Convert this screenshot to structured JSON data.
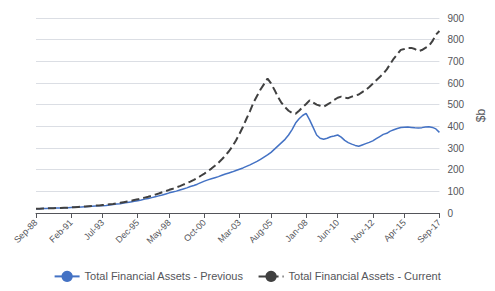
{
  "chart_data": {
    "type": "line",
    "ylabel": "$b",
    "categories": [
      "Sep-88",
      null,
      null,
      null,
      null,
      null,
      null,
      null,
      null,
      null,
      "Feb-91",
      null,
      null,
      null,
      null,
      null,
      null,
      null,
      null,
      "Jul-93",
      null,
      null,
      null,
      null,
      null,
      null,
      null,
      null,
      null,
      "Dec-95",
      null,
      null,
      null,
      null,
      null,
      null,
      null,
      null,
      "May-98",
      null,
      null,
      null,
      null,
      null,
      null,
      null,
      null,
      null,
      "Oct-00",
      null,
      null,
      null,
      null,
      null,
      null,
      null,
      null,
      null,
      "Mar-03",
      null,
      null,
      null,
      null,
      null,
      null,
      null,
      null,
      "Aug-05",
      null,
      null,
      null,
      null,
      null,
      null,
      null,
      null,
      null,
      "Jan-08",
      null,
      null,
      null,
      null,
      null,
      null,
      null,
      null,
      "Jun-10",
      null,
      null,
      null,
      null,
      null,
      null,
      null,
      null,
      null,
      "Nov-12",
      null,
      null,
      null,
      null,
      null,
      null,
      null,
      null,
      "Apr-15",
      null,
      null,
      null,
      null,
      null,
      null,
      null,
      null,
      null,
      "Sep-17"
    ],
    "series": [
      {
        "name": "Total Financial Assets - Previous",
        "color": "#4472C4",
        "line_style": "solid",
        "values": [
          20,
          20,
          21,
          21,
          22,
          22,
          23,
          23,
          24,
          24,
          25,
          26,
          27,
          28,
          29,
          30,
          31,
          32,
          33,
          34,
          35,
          37,
          39,
          41,
          43,
          46,
          48,
          51,
          54,
          57,
          60,
          64,
          67,
          71,
          75,
          79,
          83,
          88,
          93,
          97,
          101,
          106,
          111,
          116,
          122,
          127,
          133,
          140,
          147,
          153,
          158,
          163,
          168,
          174,
          180,
          185,
          190,
          196,
          202,
          208,
          215,
          222,
          230,
          238,
          248,
          258,
          268,
          280,
          295,
          310,
          325,
          340,
          360,
          385,
          415,
          435,
          450,
          460,
          430,
          395,
          360,
          345,
          340,
          345,
          352,
          355,
          360,
          350,
          335,
          325,
          318,
          312,
          308,
          314,
          320,
          326,
          333,
          343,
          353,
          363,
          368,
          378,
          384,
          390,
          395,
          396,
          397,
          395,
          393,
          392,
          394,
          397,
          398,
          395,
          388,
          372
        ]
      },
      {
        "name": "Total Financial Assets - Current",
        "color": "#404040",
        "line_style": "dashed",
        "values": [
          20,
          20,
          21,
          21,
          22,
          22,
          23,
          23,
          24,
          24,
          26,
          27,
          28,
          29,
          30,
          31,
          32,
          34,
          35,
          37,
          38,
          40,
          42,
          45,
          47,
          50,
          53,
          56,
          60,
          63,
          67,
          71,
          75,
          80,
          85,
          90,
          96,
          101,
          107,
          112,
          118,
          124,
          131,
          138,
          145,
          153,
          162,
          172,
          182,
          193,
          205,
          218,
          232,
          248,
          265,
          285,
          308,
          335,
          365,
          398,
          435,
          470,
          510,
          540,
          570,
          595,
          620,
          598,
          568,
          535,
          508,
          488,
          472,
          462,
          458,
          472,
          488,
          503,
          520,
          510,
          500,
          495,
          490,
          500,
          510,
          522,
          532,
          537,
          532,
          530,
          537,
          542,
          547,
          558,
          568,
          582,
          597,
          613,
          628,
          643,
          663,
          688,
          713,
          733,
          753,
          757,
          762,
          762,
          757,
          747,
          752,
          762,
          772,
          793,
          823,
          840
        ]
      }
    ],
    "ylim": [
      0,
      900
    ],
    "yticks": [
      0,
      100,
      200,
      300,
      400,
      500,
      600,
      700,
      800,
      900
    ],
    "grid": true,
    "legend": "bottom"
  }
}
